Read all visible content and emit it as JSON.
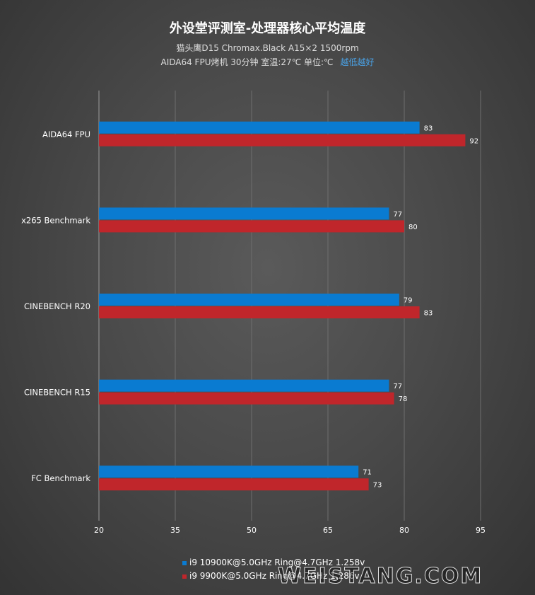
{
  "header": {
    "title": "外设堂评测室-处理器核心平均温度",
    "subtitle": "猫头鹰D15  Chromax.Black  A15×2  1500rpm",
    "subtitle2": "AIDA64  FPU烤机  30分钟  室温:27℃   单位:℃",
    "subtitle2_note": "越低越好"
  },
  "watermark": "WEISTANG.COM",
  "chart_data": {
    "type": "bar",
    "orientation": "horizontal",
    "categories": [
      "AIDA64 FPU",
      "x265 Benchmark",
      "CINEBENCH R20",
      "CINEBENCH R15",
      "FC Benchmark"
    ],
    "series": [
      {
        "name": "i9 10900K@5.0GHz Ring@4.7GHz 1.258v",
        "color": "#0a7bd1",
        "values": [
          83,
          77,
          79,
          77,
          71
        ]
      },
      {
        "name": "i9 9900K@5.0GHz Ring@4.7GHz 1.286v",
        "color": "#c0262b",
        "values": [
          92,
          80,
          83,
          78,
          73
        ]
      }
    ],
    "xlim": [
      20,
      95
    ],
    "xticks": [
      "20",
      "35",
      "50",
      "65",
      "80",
      "95"
    ],
    "grid": "vertical",
    "legend_position": "bottom-center"
  }
}
